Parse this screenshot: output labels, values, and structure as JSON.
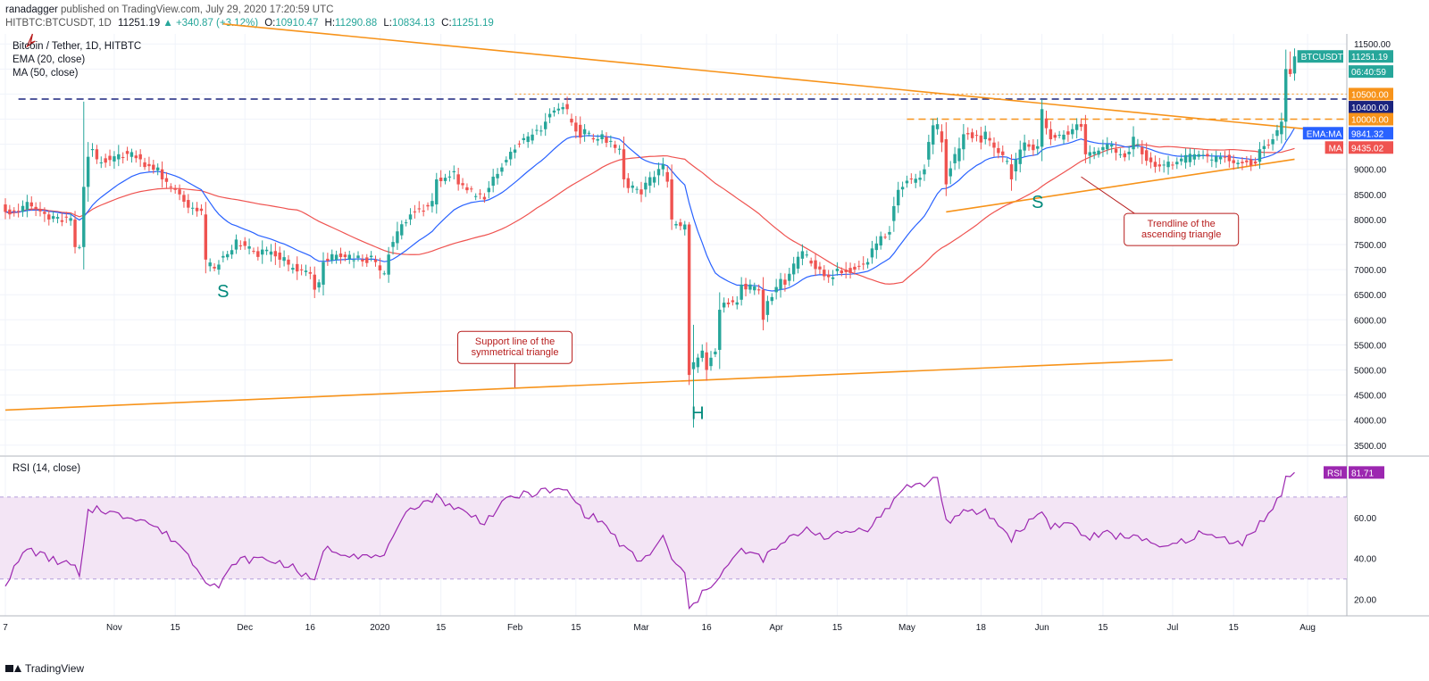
{
  "header": {
    "user": "ranadagger",
    "published": "published on TradingView.com, July 29, 2020 17:20:59 UTC",
    "symbol": "HITBTC:BTCUSDT, 1D",
    "price": "11251.19",
    "change": "▲ +340.87 (+3.12%)",
    "open_label": "O:",
    "open": "10910.47",
    "high_label": "H:",
    "high": "11290.88",
    "low_label": "L:",
    "low": "10834.13",
    "close_label": "C:",
    "close": "11251.19"
  },
  "legend": {
    "title": "Bitcoin / Tether, 1D, HITBTC",
    "ema": "EMA (20, close)",
    "ma": "MA (50, close)"
  },
  "rsi_label": "RSI (14, close)",
  "footer": {
    "brand": "TradingView"
  },
  "colors": {
    "up": "#26a69a",
    "down": "#ef5350",
    "ema": "#2962ff",
    "ma": "#ef5350",
    "trend": "#f7931a",
    "dash_blue": "#1a237e",
    "rsi": "#9c27b0",
    "rsi_band": "#f3e5f5",
    "annotation": "#b71c1c",
    "pattern_text": "#00897b"
  },
  "chart_data": [
    {
      "type": "candlestick",
      "title": "Bitcoin / Tether, 1D, HITBTC",
      "series": [
        {
          "name": "EMA (20, close)"
        },
        {
          "name": "MA (50, close)"
        }
      ],
      "x_ticks": [
        "7",
        "Nov",
        "15",
        "Dec",
        "16",
        "2020",
        "15",
        "Feb",
        "15",
        "Mar",
        "16",
        "Apr",
        "15",
        "May",
        "18",
        "Jun",
        "15",
        "Jul",
        "15",
        "Aug"
      ],
      "x_range": [
        "2019-10-07",
        "2020-08-10"
      ],
      "y_ticks": [
        3500,
        4000,
        4500,
        5000,
        5500,
        6000,
        6500,
        7000,
        7500,
        8000,
        8500,
        9000,
        9500,
        10000,
        10500,
        11000,
        11500
      ],
      "ylim": [
        3300,
        11700
      ],
      "price_tags": [
        {
          "label": "BTCUSDT",
          "value": "11251.19",
          "at": 11251.19,
          "color": "#26a69a"
        },
        {
          "label": "",
          "value": "06:40:59",
          "at": 10950,
          "color": "#26a69a"
        },
        {
          "label": "",
          "value": "10500.00",
          "at": 10500,
          "color": "#f7931a"
        },
        {
          "label": "",
          "value": "10400.00",
          "at": 10240,
          "color": "#1a237e"
        },
        {
          "label": "",
          "value": "10000.00",
          "at": 10000,
          "color": "#f7931a"
        },
        {
          "label": "EMA:MA",
          "value": "9841.32",
          "at": 9720,
          "color": "#2962ff"
        },
        {
          "label": "MA",
          "value": "9435.02",
          "at": 9435.02,
          "color": "#ef5350"
        }
      ],
      "levels": [
        {
          "value": 10400,
          "style": "dashed",
          "color": "#1a237e"
        },
        {
          "value": 10500,
          "style": "dotted",
          "color": "#f7931a"
        },
        {
          "value": 10000,
          "style": "dashed",
          "color": "#f7931a"
        }
      ],
      "trendlines": [
        {
          "from": [
            "2019-11-26",
            11900
          ],
          "to": [
            "2020-07-31",
            9810
          ]
        },
        {
          "from": [
            "2019-10-07",
            4200
          ],
          "to": [
            "2020-07-01",
            5200
          ]
        },
        {
          "from": [
            "2020-05-10",
            8150
          ],
          "to": [
            "2020-07-29",
            9200
          ]
        }
      ],
      "annotations": [
        {
          "text": "S",
          "at": [
            "2019-11-26",
            6450
          ]
        },
        {
          "text": "H",
          "at": [
            "2020-03-14",
            4020
          ]
        },
        {
          "text": "S",
          "at": [
            "2020-05-31",
            8230
          ]
        },
        {
          "text": "Support line of the\nsymmetrical triangle",
          "kind": "callout",
          "at": [
            "2020-02-01",
            5450
          ],
          "points_to": [
            "2020-02-01",
            4650
          ]
        },
        {
          "text": "Trendline of the\nascending triangle",
          "kind": "callout",
          "at": [
            "2020-07-03",
            7800
          ],
          "points_to": [
            "2020-06-10",
            8850
          ]
        }
      ],
      "keypoints": [
        [
          "2019-10-07",
          8300,
          8150
        ],
        [
          "2019-10-12",
          8200,
          8350
        ],
        [
          "2019-10-17",
          8100,
          8000
        ],
        [
          "2019-10-23",
          8000,
          7450
        ],
        [
          "2019-10-24",
          7450,
          7450
        ],
        [
          "2019-10-25",
          7450,
          8650
        ],
        [
          "2019-10-26",
          8650,
          9250
        ],
        [
          "2019-10-28",
          9400,
          9200
        ],
        [
          "2019-11-02",
          9200,
          9300
        ],
        [
          "2019-11-07",
          9300,
          9200
        ],
        [
          "2019-11-12",
          9000,
          8800
        ],
        [
          "2019-11-16",
          8600,
          8500
        ],
        [
          "2019-11-22",
          8100,
          7200
        ],
        [
          "2019-11-25",
          7000,
          7100
        ],
        [
          "2019-11-29",
          7400,
          7600
        ],
        [
          "2019-12-05",
          7300,
          7400
        ],
        [
          "2019-12-11",
          7200,
          7100
        ],
        [
          "2019-12-17",
          6900,
          6600
        ],
        [
          "2019-12-19",
          6700,
          7150
        ],
        [
          "2019-12-24",
          7300,
          7250
        ],
        [
          "2019-12-31",
          7200,
          7150
        ],
        [
          "2020-01-03",
          6900,
          7300
        ],
        [
          "2020-01-08",
          8000,
          8100
        ],
        [
          "2020-01-14",
          8300,
          8800
        ],
        [
          "2020-01-19",
          8900,
          8700
        ],
        [
          "2020-01-25",
          8450,
          8400
        ],
        [
          "2020-01-31",
          9200,
          9350
        ],
        [
          "2020-02-08",
          9800,
          9950
        ],
        [
          "2020-02-13",
          10300,
          10200
        ],
        [
          "2020-02-17",
          9700,
          9800
        ],
        [
          "2020-02-21",
          9600,
          9700
        ],
        [
          "2020-02-26",
          9400,
          8800
        ],
        [
          "2020-03-01",
          8600,
          8500
        ],
        [
          "2020-03-06",
          9000,
          9100
        ],
        [
          "2020-03-08",
          8800,
          8000
        ],
        [
          "2020-03-11",
          7800,
          7900
        ],
        [
          "2020-03-12",
          7900,
          4900
        ],
        [
          "2020-03-16",
          5350,
          5000
        ],
        [
          "2020-03-19",
          5400,
          6200
        ],
        [
          "2020-03-24",
          6400,
          6700
        ],
        [
          "2020-03-29",
          6600,
          6000
        ],
        [
          "2020-04-03",
          6800,
          6700
        ],
        [
          "2020-04-08",
          7300,
          7300
        ],
        [
          "2020-04-13",
          6900,
          6850
        ],
        [
          "2020-04-17",
          7000,
          6950
        ],
        [
          "2020-04-22",
          7100,
          7150
        ],
        [
          "2020-04-27",
          7700,
          7750
        ],
        [
          "2020-04-30",
          8600,
          8650
        ],
        [
          "2020-05-05",
          8900,
          9000
        ],
        [
          "2020-05-08",
          9800,
          9900
        ],
        [
          "2020-05-10",
          9600,
          8700
        ],
        [
          "2020-05-14",
          9400,
          9700
        ],
        [
          "2020-05-19",
          9600,
          9750
        ],
        [
          "2020-05-25",
          9100,
          8800
        ],
        [
          "2020-05-29",
          9500,
          9450
        ],
        [
          "2020-06-01",
          9450,
          10200
        ],
        [
          "2020-06-03",
          9800,
          9600
        ],
        [
          "2020-06-08",
          9700,
          9800
        ],
        [
          "2020-06-11",
          9900,
          9300
        ],
        [
          "2020-06-16",
          9400,
          9500
        ],
        [
          "2020-06-21",
          9300,
          9350
        ],
        [
          "2020-06-22",
          9400,
          9650
        ],
        [
          "2020-06-27",
          9150,
          9050
        ],
        [
          "2020-07-02",
          9100,
          9150
        ],
        [
          "2020-07-07",
          9250,
          9300
        ],
        [
          "2020-07-12",
          9200,
          9250
        ],
        [
          "2020-07-17",
          9150,
          9120
        ],
        [
          "2020-07-21",
          9150,
          9400
        ],
        [
          "2020-07-24",
          9500,
          9600
        ],
        [
          "2020-07-26",
          9700,
          9950
        ],
        [
          "2020-07-27",
          9950,
          11000
        ],
        [
          "2020-07-28",
          11000,
          10900
        ],
        [
          "2020-07-29",
          10910.47,
          11251.19
        ]
      ]
    },
    {
      "type": "line",
      "title": "RSI (14, close)",
      "series": [
        {
          "name": "RSI",
          "last": "81.71"
        }
      ],
      "y_ticks": [
        20,
        40,
        60
      ],
      "bands": [
        30,
        70
      ],
      "ylim": [
        12,
        90
      ],
      "keypoints": [
        [
          "2019-10-07",
          28
        ],
        [
          "2019-10-12",
          45
        ],
        [
          "2019-10-17",
          40
        ],
        [
          "2019-10-23",
          36
        ],
        [
          "2019-10-24",
          30
        ],
        [
          "2019-10-26",
          62
        ],
        [
          "2019-10-28",
          65
        ],
        [
          "2019-11-02",
          61
        ],
        [
          "2019-11-07",
          60
        ],
        [
          "2019-11-12",
          53
        ],
        [
          "2019-11-16",
          47
        ],
        [
          "2019-11-22",
          30
        ],
        [
          "2019-11-25",
          26
        ],
        [
          "2019-11-29",
          39
        ],
        [
          "2019-12-05",
          40
        ],
        [
          "2019-12-11",
          37
        ],
        [
          "2019-12-17",
          28
        ],
        [
          "2019-12-19",
          45
        ],
        [
          "2019-12-24",
          43
        ],
        [
          "2019-12-31",
          40
        ],
        [
          "2020-01-03",
          45
        ],
        [
          "2020-01-08",
          65
        ],
        [
          "2020-01-14",
          70
        ],
        [
          "2020-01-19",
          64
        ],
        [
          "2020-01-25",
          58
        ],
        [
          "2020-01-31",
          70
        ],
        [
          "2020-02-08",
          73
        ],
        [
          "2020-02-13",
          73
        ],
        [
          "2020-02-17",
          62
        ],
        [
          "2020-02-21",
          58
        ],
        [
          "2020-02-26",
          45
        ],
        [
          "2020-03-01",
          38
        ],
        [
          "2020-03-06",
          50
        ],
        [
          "2020-03-08",
          40
        ],
        [
          "2020-03-11",
          32
        ],
        [
          "2020-03-12",
          15
        ],
        [
          "2020-03-16",
          25
        ],
        [
          "2020-03-19",
          32
        ],
        [
          "2020-03-24",
          44
        ],
        [
          "2020-03-29",
          40
        ],
        [
          "2020-04-03",
          48
        ],
        [
          "2020-04-08",
          55
        ],
        [
          "2020-04-13",
          50
        ],
        [
          "2020-04-17",
          53
        ],
        [
          "2020-04-22",
          55
        ],
        [
          "2020-04-27",
          65
        ],
        [
          "2020-04-30",
          75
        ],
        [
          "2020-05-05",
          76
        ],
        [
          "2020-05-08",
          80
        ],
        [
          "2020-05-10",
          58
        ],
        [
          "2020-05-14",
          62
        ],
        [
          "2020-05-19",
          63
        ],
        [
          "2020-05-25",
          50
        ],
        [
          "2020-05-29",
          58
        ],
        [
          "2020-06-01",
          63
        ],
        [
          "2020-06-03",
          56
        ],
        [
          "2020-06-08",
          57
        ],
        [
          "2020-06-11",
          50
        ],
        [
          "2020-06-16",
          52
        ],
        [
          "2020-06-21",
          50
        ],
        [
          "2020-06-22",
          53
        ],
        [
          "2020-06-27",
          45
        ],
        [
          "2020-07-02",
          47
        ],
        [
          "2020-07-07",
          52
        ],
        [
          "2020-07-12",
          50
        ],
        [
          "2020-07-17",
          48
        ],
        [
          "2020-07-21",
          57
        ],
        [
          "2020-07-24",
          64
        ],
        [
          "2020-07-26",
          72
        ],
        [
          "2020-07-27",
          80
        ],
        [
          "2020-07-28",
          79
        ],
        [
          "2020-07-29",
          82
        ]
      ]
    }
  ]
}
